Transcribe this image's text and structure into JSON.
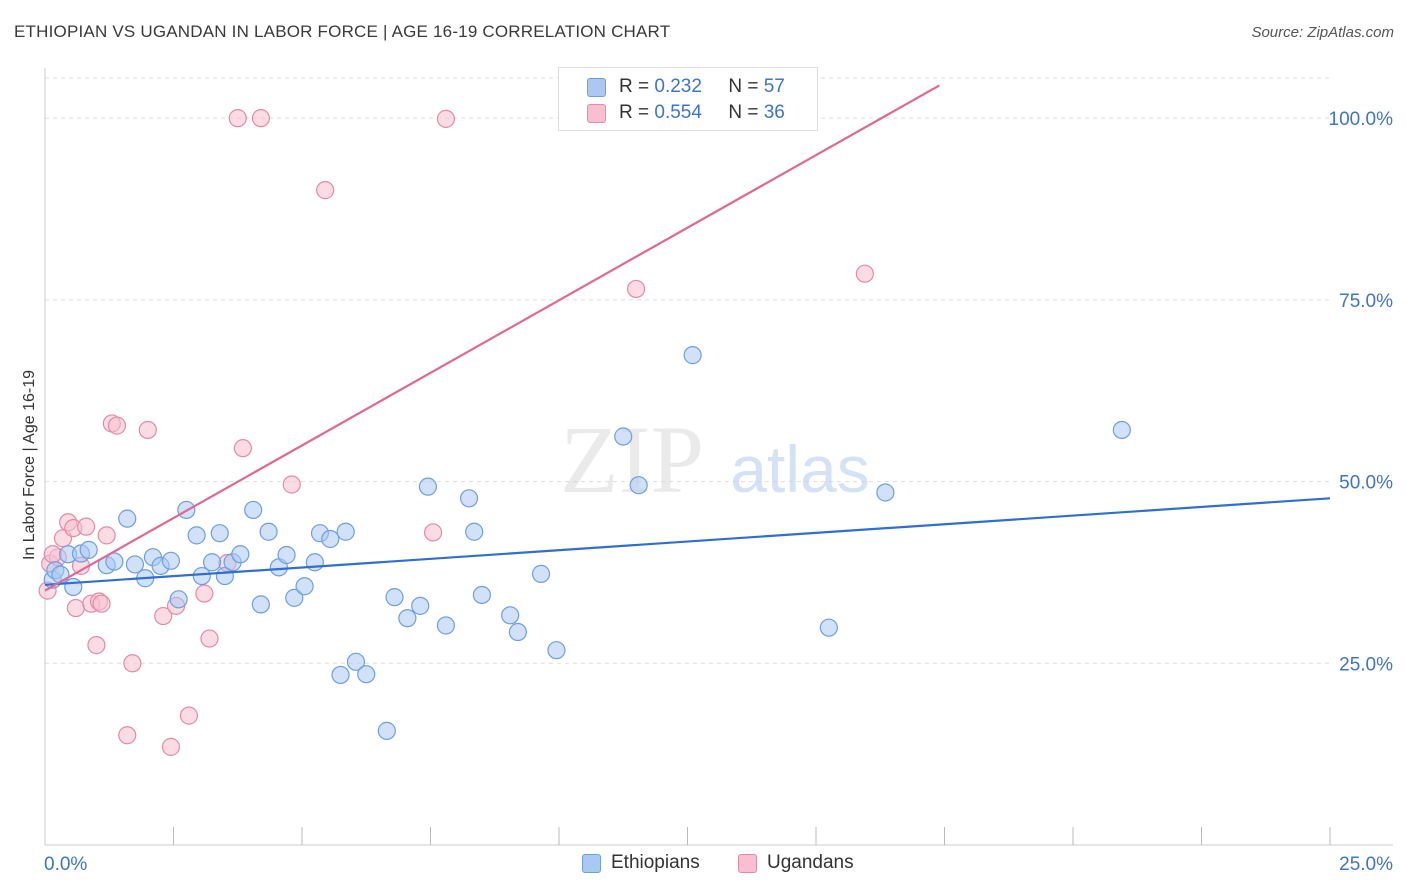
{
  "header": {
    "title": "ETHIOPIAN VS UGANDAN IN LABOR FORCE | AGE 16-19 CORRELATION CHART",
    "source": "Source: ZipAtlas.com"
  },
  "watermark": {
    "zip": "ZIP",
    "atlas": "atlas"
  },
  "legend": {
    "r_label": "R =",
    "n_label": "N =",
    "items": [
      {
        "name": "Ethiopians",
        "r": "0.232",
        "n": "57",
        "fill": "#a9c8f2",
        "stroke": "#6f9fe0"
      },
      {
        "name": "Ugandans",
        "r": "0.554",
        "n": "36",
        "fill": "#f7bfd0",
        "stroke": "#e48aa7"
      }
    ]
  },
  "colors": {
    "blue_line": "#2f6fcf",
    "pink_line": "#e06892",
    "tick_label": "#3d74cc",
    "grid": "#dddddd"
  },
  "chart_data": {
    "type": "scatter",
    "title": "ETHIOPIAN VS UGANDAN IN LABOR FORCE | AGE 16-19 CORRELATION CHART",
    "xlabel": "",
    "ylabel": "In Labor Force | Age 16-19",
    "xlim": [
      0,
      25
    ],
    "ylim": [
      0,
      108
    ],
    "x_tick_labels": [
      {
        "value": 0,
        "label": "0.0%"
      },
      {
        "value": 25,
        "label": "25.0%"
      }
    ],
    "y_tick_labels": [
      {
        "value": 25,
        "label": "25.0%"
      },
      {
        "value": 50,
        "label": "50.0%"
      },
      {
        "value": 75,
        "label": "75.0%"
      },
      {
        "value": 100,
        "label": "100.0%"
      }
    ],
    "series": [
      {
        "name": "Ethiopians",
        "r": 0.232,
        "n": 57,
        "trend": {
          "x0": 0,
          "y0": 35.8,
          "x1": 25,
          "y1": 47.7
        },
        "points": [
          [
            0.15,
            36.5
          ],
          [
            0.2,
            37.8
          ],
          [
            0.3,
            37.2
          ],
          [
            0.45,
            40.0
          ],
          [
            0.55,
            35.5
          ],
          [
            0.7,
            40.1
          ],
          [
            0.85,
            40.6
          ],
          [
            1.2,
            38.5
          ],
          [
            1.35,
            39.0
          ],
          [
            1.6,
            44.9
          ],
          [
            1.75,
            38.6
          ],
          [
            1.95,
            36.7
          ],
          [
            2.1,
            39.6
          ],
          [
            2.25,
            38.4
          ],
          [
            2.45,
            39.1
          ],
          [
            2.6,
            33.8
          ],
          [
            2.75,
            46.1
          ],
          [
            2.95,
            42.6
          ],
          [
            3.05,
            37.0
          ],
          [
            3.25,
            38.9
          ],
          [
            3.4,
            42.9
          ],
          [
            3.5,
            37.0
          ],
          [
            3.65,
            38.9
          ],
          [
            3.8,
            40.0
          ],
          [
            4.05,
            46.1
          ],
          [
            4.2,
            33.1
          ],
          [
            4.35,
            43.1
          ],
          [
            4.55,
            38.2
          ],
          [
            4.7,
            39.9
          ],
          [
            4.85,
            34.0
          ],
          [
            5.05,
            35.6
          ],
          [
            5.25,
            38.9
          ],
          [
            5.35,
            42.9
          ],
          [
            5.55,
            42.1
          ],
          [
            5.75,
            23.4
          ],
          [
            5.85,
            43.1
          ],
          [
            6.05,
            25.2
          ],
          [
            6.25,
            23.5
          ],
          [
            6.65,
            15.7
          ],
          [
            6.8,
            34.1
          ],
          [
            7.05,
            31.2
          ],
          [
            7.3,
            32.9
          ],
          [
            7.45,
            49.3
          ],
          [
            7.8,
            30.2
          ],
          [
            8.25,
            47.7
          ],
          [
            8.35,
            43.1
          ],
          [
            8.5,
            34.4
          ],
          [
            9.05,
            31.6
          ],
          [
            9.2,
            29.3
          ],
          [
            9.65,
            37.3
          ],
          [
            9.95,
            26.8
          ],
          [
            11.25,
            56.2
          ],
          [
            11.55,
            49.5
          ],
          [
            12.6,
            67.4
          ],
          [
            15.25,
            29.9
          ],
          [
            16.35,
            48.5
          ],
          [
            20.95,
            57.1
          ]
        ]
      },
      {
        "name": "Ugandans",
        "r": 0.554,
        "n": 36,
        "trend": {
          "x0": 0,
          "y0": 35.0,
          "x1": 17.4,
          "y1": 104.5
        },
        "points": [
          [
            0.05,
            35.0
          ],
          [
            0.1,
            38.7
          ],
          [
            0.25,
            39.6
          ],
          [
            0.35,
            42.2
          ],
          [
            0.45,
            44.4
          ],
          [
            0.55,
            43.6
          ],
          [
            0.6,
            32.6
          ],
          [
            0.7,
            38.4
          ],
          [
            0.8,
            43.8
          ],
          [
            0.9,
            33.2
          ],
          [
            1.0,
            27.5
          ],
          [
            1.05,
            33.5
          ],
          [
            1.1,
            33.2
          ],
          [
            1.2,
            42.6
          ],
          [
            1.3,
            58.0
          ],
          [
            1.4,
            57.7
          ],
          [
            1.6,
            15.1
          ],
          [
            1.7,
            25.0
          ],
          [
            2.0,
            57.1
          ],
          [
            2.3,
            31.5
          ],
          [
            2.45,
            13.5
          ],
          [
            2.55,
            32.9
          ],
          [
            2.8,
            17.8
          ],
          [
            3.1,
            34.6
          ],
          [
            3.2,
            28.4
          ],
          [
            3.55,
            38.8
          ],
          [
            3.75,
            100.0
          ],
          [
            3.85,
            54.6
          ],
          [
            4.2,
            100.0
          ],
          [
            4.8,
            49.6
          ],
          [
            5.45,
            90.1
          ],
          [
            7.55,
            43.0
          ],
          [
            7.8,
            99.9
          ],
          [
            11.5,
            76.5
          ],
          [
            15.95,
            78.6
          ],
          [
            0.15,
            40.0
          ]
        ]
      }
    ]
  },
  "bottom_legend": [
    "Ethiopians",
    "Ugandans"
  ]
}
